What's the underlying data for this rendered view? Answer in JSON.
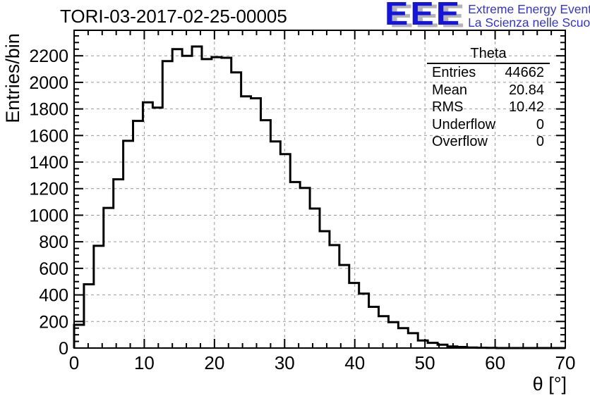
{
  "page": {
    "title": "TORI-03-2017-02-25-00005"
  },
  "logo": {
    "acronym": "EEE",
    "line1": "Extreme Energy Events",
    "line2": "La Scienza nelle Scuole",
    "blue": "#1414dd",
    "text_blue": "#3333e0",
    "shadow_gray": "#b4b4b4"
  },
  "stats": {
    "title": "Theta",
    "rows": [
      {
        "label": "Entries",
        "value": "44662"
      },
      {
        "label": "Mean",
        "value": "20.84"
      },
      {
        "label": "RMS",
        "value": "10.42"
      },
      {
        "label": "Underflow",
        "value": "0"
      },
      {
        "label": "Overflow",
        "value": "0"
      }
    ]
  },
  "axes": {
    "ylabel": "Entries/bin",
    "xlabel": "θ [°]"
  },
  "chart_data": {
    "type": "bar",
    "subtype": "step-histogram",
    "title": "TORI-03-2017-02-25-00005",
    "xlabel": "θ [°]",
    "ylabel": "Entries/bin",
    "xlim": [
      0,
      70
    ],
    "ylim": [
      0,
      2392
    ],
    "bin_start": 0,
    "bin_width": 1.4,
    "n_bins": 50,
    "values": [
      175,
      480,
      770,
      1055,
      1270,
      1560,
      1710,
      1850,
      1810,
      2160,
      2250,
      2200,
      2270,
      2175,
      2190,
      2185,
      2075,
      1895,
      1880,
      1715,
      1555,
      1460,
      1250,
      1205,
      1050,
      880,
      775,
      625,
      490,
      410,
      310,
      240,
      195,
      150,
      112,
      57,
      39,
      25,
      12,
      8,
      4,
      2,
      1,
      0,
      0,
      0,
      0,
      0,
      0,
      0
    ],
    "x_ticks": [
      0,
      10,
      20,
      30,
      40,
      50,
      60,
      70
    ],
    "y_ticks": [
      0,
      200,
      400,
      600,
      800,
      1000,
      1200,
      1400,
      1600,
      1800,
      2000,
      2200
    ],
    "x_minor_step": 2,
    "y_minor_step": 50,
    "grid": {
      "show": true,
      "style": "dashed",
      "color": "#999999",
      "on_major_ticks": true
    },
    "line_color": "#000000",
    "stats_box": {
      "title": "Theta",
      "entries": 44662,
      "mean": 20.84,
      "rms": 10.42,
      "underflow": 0,
      "overflow": 0
    },
    "legend_position": "none"
  }
}
